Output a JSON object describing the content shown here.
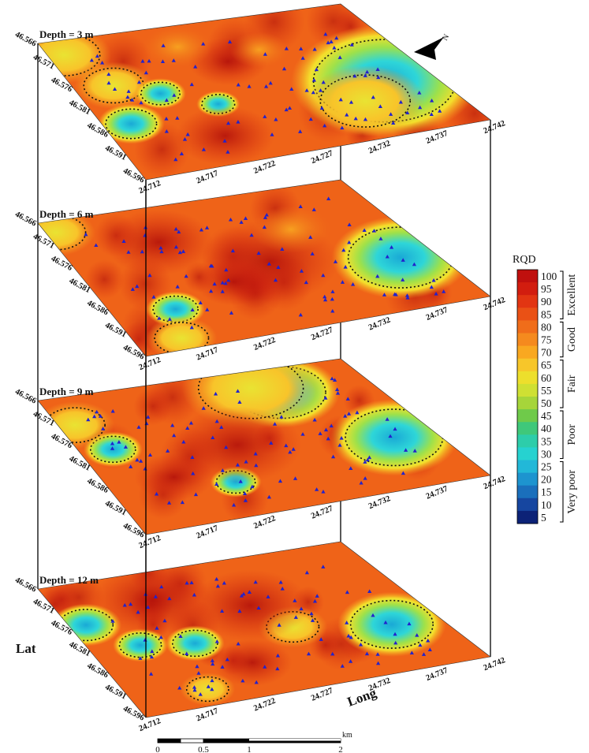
{
  "depth_labels": [
    "Depth = 3 m",
    "Depth = 6 m",
    "Depth = 9 m",
    "Depth = 12 m"
  ],
  "lat_ticks": [
    "46.566",
    "46.571",
    "46.576",
    "46.581",
    "46.586",
    "46.591",
    "46.596"
  ],
  "long_ticks": [
    "24.712",
    "24.717",
    "24.722",
    "24.727",
    "24.732",
    "24.737",
    "24.742"
  ],
  "axis_labels": {
    "lat": "Lat",
    "long": "Long"
  },
  "north_label": "N",
  "legend": {
    "title": "RQD",
    "ticks": [
      "100",
      "95",
      "90",
      "85",
      "80",
      "75",
      "70",
      "65",
      "60",
      "55",
      "50",
      "45",
      "40",
      "35",
      "30",
      "25",
      "20",
      "15",
      "10",
      "5"
    ],
    "colors": [
      "#c0100e",
      "#d21d0f",
      "#e23512",
      "#ea5115",
      "#f06d1a",
      "#f58a1e",
      "#f9a820",
      "#f7c62a",
      "#eddf2c",
      "#cfe033",
      "#a6d53a",
      "#6fca4a",
      "#3fc87a",
      "#2dcdaa",
      "#26d2d0",
      "#22b8d8",
      "#1d94cf",
      "#1a6fbc",
      "#1646a0",
      "#0c2277"
    ],
    "classes": [
      "Excellent",
      "Good",
      "Fair",
      "Poor",
      "Very poor"
    ]
  },
  "scale_bar": {
    "ticks": [
      "0",
      "0.5",
      "1",
      "2"
    ],
    "unit": "km"
  }
}
